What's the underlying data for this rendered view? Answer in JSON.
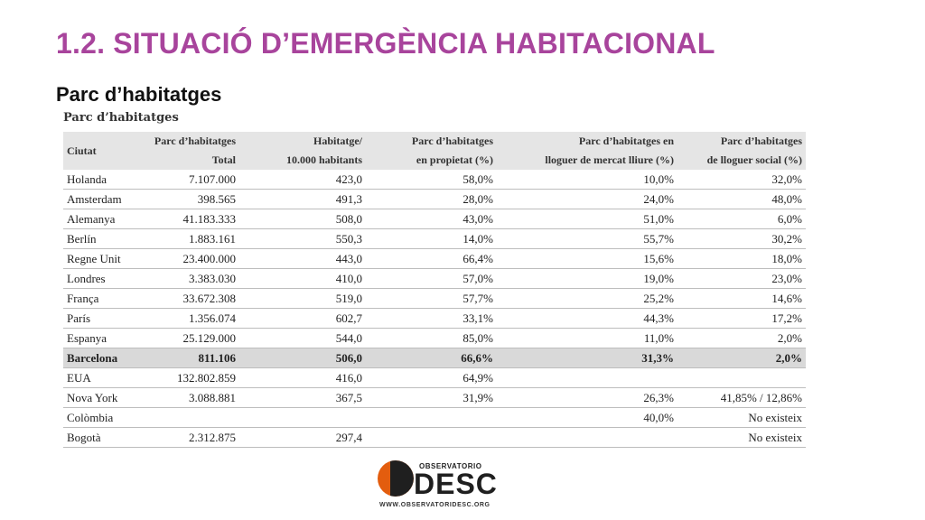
{
  "slide": {
    "title": "1.2. SITUACIÓ D’EMERGÈNCIA HABITACIONAL",
    "subtitle": "Parc d’habitatges"
  },
  "table": {
    "caption": "Parc d’habitatges",
    "headers": [
      [
        "Ciutat",
        ""
      ],
      [
        "Parc d’habitatges",
        "Total"
      ],
      [
        "Habitatge/",
        "10.000 habitants"
      ],
      [
        "Parc d’habitatges",
        "en propietat (%)"
      ],
      [
        "Parc d’habitatges en",
        "lloguer de mercat lliure (%)"
      ],
      [
        "Parc d’habitatges",
        "de lloguer social (%)"
      ]
    ],
    "rows": [
      [
        "Holanda",
        "7.107.000",
        "423,0",
        "58,0%",
        "10,0%",
        "32,0%"
      ],
      [
        "Amsterdam",
        "398.565",
        "491,3",
        "28,0%",
        "24,0%",
        "48,0%"
      ],
      [
        "Alemanya",
        "41.183.333",
        "508,0",
        "43,0%",
        "51,0%",
        "6,0%"
      ],
      [
        "Berlín",
        "1.883.161",
        "550,3",
        "14,0%",
        "55,7%",
        "30,2%"
      ],
      [
        "Regne Unit",
        "23.400.000",
        "443,0",
        "66,4%",
        "15,6%",
        "18,0%"
      ],
      [
        "Londres",
        "3.383.030",
        "410,0",
        "57,0%",
        "19,0%",
        "23,0%"
      ],
      [
        "França",
        "33.672.308",
        "519,0",
        "57,7%",
        "25,2%",
        "14,6%"
      ],
      [
        "París",
        "1.356.074",
        "602,7",
        "33,1%",
        "44,3%",
        "17,2%"
      ],
      [
        "Espanya",
        "25.129.000",
        "544,0",
        "85,0%",
        "11,0%",
        "2,0%"
      ],
      [
        "Barcelona",
        "811.106",
        "506,0",
        "66,6%",
        "31,3%",
        "2,0%"
      ],
      [
        "EUA",
        "132.802.859",
        "416,0",
        "64,9%",
        "",
        ""
      ],
      [
        "Nova York",
        "3.088.881",
        "367,5",
        "31,9%",
        "26,3%",
        "41,85% / 12,86%"
      ],
      [
        "Colòmbia",
        "",
        "",
        "",
        "40,0%",
        "No existeix"
      ],
      [
        "Bogotà",
        "2.312.875",
        "297,4",
        "",
        "",
        "No existeix"
      ]
    ],
    "highlight_row": "Barcelona"
  },
  "logo": {
    "top_text": "OBSERVATORIO",
    "word": "DESC",
    "url": "WWW.OBSERVATORIDESC.ORG"
  },
  "colors": {
    "title": "#a8449c",
    "header_bg": "#e5e5e5",
    "highlight_bg": "#d9d9d9",
    "logo_orange": "#e35d0e"
  }
}
